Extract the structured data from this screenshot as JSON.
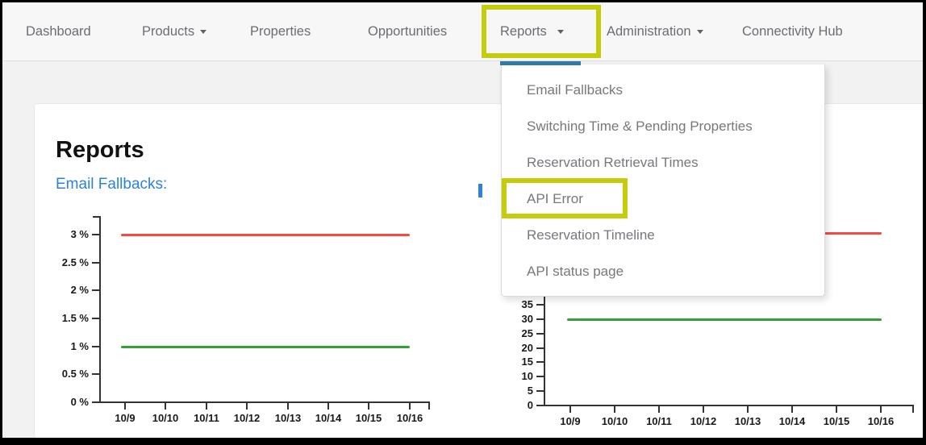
{
  "nav": {
    "items": [
      {
        "label": "Dashboard",
        "caret": false
      },
      {
        "label": "Products",
        "caret": true
      },
      {
        "label": "Properties",
        "caret": false
      },
      {
        "label": "Opportunities",
        "caret": false
      },
      {
        "label": "Reports",
        "caret": true
      },
      {
        "label": "Administration",
        "caret": true
      },
      {
        "label": "Connectivity Hub",
        "caret": false
      }
    ],
    "active_item": "Reports"
  },
  "reports_menu": {
    "items": [
      "Email Fallbacks",
      "Switching Time & Pending Properties",
      "Reservation Retrieval Times",
      "API Error",
      "Reservation Timeline",
      "API status page"
    ],
    "highlighted_item": "API Error"
  },
  "annotations": {
    "highlight_color": "#c5cc0b",
    "boxed_nav_item": "Reports",
    "boxed_menu_item": "API Error"
  },
  "page": {
    "title": "Reports",
    "left_chart_link": "Email Fallbacks:",
    "right_chart_title_obscured_by_menu": true
  },
  "colors": {
    "link_blue": "#2f82d6",
    "active_tab_indicator": "#2e7ba3",
    "series_red": "#f64a42",
    "series_green": "#35a035",
    "axis": "#333333"
  },
  "chart_data": [
    {
      "type": "line",
      "title": "Email Fallbacks",
      "x": [
        "10/9",
        "10/10",
        "10/11",
        "10/12",
        "10/13",
        "10/14",
        "10/15",
        "10/16"
      ],
      "series": [
        {
          "name": "red-flat-line",
          "color": "#f64a42",
          "values": [
            3,
            3,
            3,
            3,
            3,
            3,
            3,
            3
          ]
        },
        {
          "name": "green-flat-line",
          "color": "#35a035",
          "values": [
            1,
            1,
            1,
            1,
            1,
            1,
            1,
            1
          ]
        }
      ],
      "yticks": [
        {
          "label": "3 %",
          "value": 3
        },
        {
          "label": "2.5 %",
          "value": 2.5
        },
        {
          "label": "2 %",
          "value": 2
        },
        {
          "label": "1.5 %",
          "value": 1.5
        },
        {
          "label": "1 %",
          "value": 1
        },
        {
          "label": "0.5 %",
          "value": 0.5
        },
        {
          "label": "0 %",
          "value": 0
        }
      ],
      "ylim": [
        0,
        3.3
      ],
      "grid": false,
      "legend": "none"
    },
    {
      "type": "line",
      "title_visible": false,
      "x": [
        "10/9",
        "10/10",
        "10/11",
        "10/12",
        "10/13",
        "10/14",
        "10/15",
        "10/16"
      ],
      "series": [
        {
          "name": "red-flat-line",
          "color": "#f64a42",
          "values": [
            60,
            60,
            60,
            60,
            60,
            60,
            60,
            60
          ]
        },
        {
          "name": "green-flat-line",
          "color": "#35a035",
          "values": [
            30,
            30,
            30,
            30,
            30,
            30,
            30,
            30
          ]
        }
      ],
      "yticks": [
        {
          "label": "35",
          "value": 35
        },
        {
          "label": "30",
          "value": 30
        },
        {
          "label": "25",
          "value": 25
        },
        {
          "label": "20",
          "value": 20
        },
        {
          "label": "15",
          "value": 15
        },
        {
          "label": "10",
          "value": 10
        },
        {
          "label": "5",
          "value": 5
        },
        {
          "label": "0",
          "value": 0
        }
      ],
      "ylim": [
        0,
        65
      ],
      "grid": false,
      "legend": "none",
      "partially_hidden_by_menu": true
    }
  ]
}
